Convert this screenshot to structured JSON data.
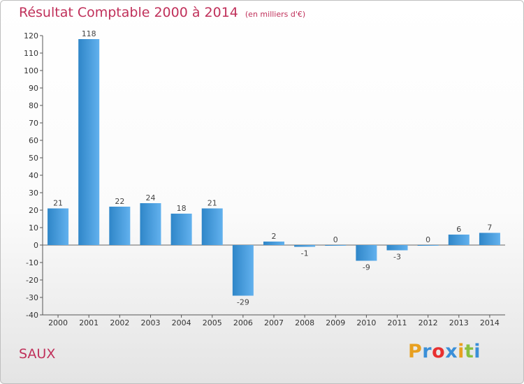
{
  "title": "Résultat Comptable 2000 à 2014",
  "unit_note": "(en milliers d'€)",
  "commune": "SAUX",
  "logo": {
    "letters": [
      "P",
      "r",
      "o",
      "x",
      "i",
      "t",
      "i"
    ],
    "colors": [
      "#e8a020",
      "#3a8fd8",
      "#e83030",
      "#3a8fd8",
      "#e8a020",
      "#8ac040",
      "#3a8fd8"
    ]
  },
  "colors": {
    "bar": "#2f86c8",
    "bar_light": "#62b1ee",
    "title": "#c0305a"
  },
  "chart_data": {
    "type": "bar",
    "title": "Résultat Comptable 2000 à 2014",
    "ylabel": "(en milliers d'€)",
    "xlabel": "",
    "categories": [
      "2000",
      "2001",
      "2002",
      "2003",
      "2004",
      "2005",
      "2006",
      "2007",
      "2008",
      "2009",
      "2010",
      "2011",
      "2012",
      "2013",
      "2014"
    ],
    "values": [
      21,
      118,
      22,
      24,
      18,
      21,
      -29,
      2,
      -1,
      0,
      -9,
      -3,
      0,
      6,
      7
    ],
    "ylim": [
      -40,
      120
    ],
    "yticks": [
      120,
      110,
      100,
      90,
      80,
      70,
      60,
      50,
      40,
      30,
      20,
      10,
      0,
      -10,
      -20,
      -30,
      -40
    ],
    "grid": false
  }
}
